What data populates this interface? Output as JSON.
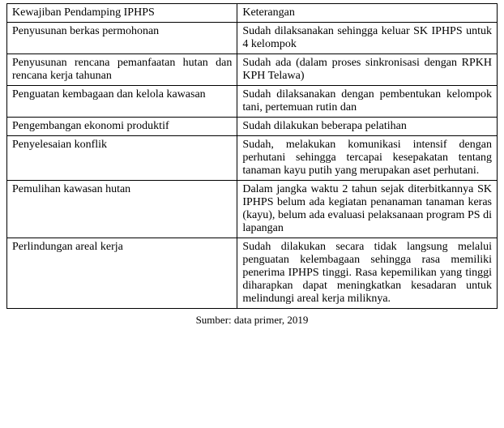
{
  "table": {
    "columns": [
      "Kewajiban Pendamping IPHPS",
      "Keterangan"
    ],
    "rows": [
      [
        "Penyusunan berkas permohonan",
        "Sudah dilaksanakan sehingga keluar SK IPHPS untuk 4 kelompok"
      ],
      [
        "Penyusunan rencana pemanfaatan hutan dan rencana kerja tahunan",
        "Sudah ada (dalam proses sinkronisasi dengan RPKH KPH Telawa)"
      ],
      [
        "Penguatan kembagaan dan kelola kawasan",
        "Sudah dilaksanakan dengan pembentukan kelompok tani, pertemuan rutin dan"
      ],
      [
        "Pengembangan ekonomi produktif",
        "Sudah dilakukan beberapa pelatihan"
      ],
      [
        "Penyelesaian konflik",
        "Sudah, melakukan komunikasi intensif dengan perhutani sehingga tercapai kesepakatan tentang tanaman kayu putih yang merupakan aset perhutani."
      ],
      [
        "Pemulihan kawasan hutan",
        "Dalam jangka waktu 2 tahun sejak diterbitkannya SK IPHPS belum ada kegiatan penanaman tanaman keras (kayu), belum ada evaluasi pelaksanaan program PS di lapangan"
      ],
      [
        "Perlindungan areal kerja",
        "Sudah dilakukan secara tidak langsung melalui penguatan kelembagaan sehingga rasa memiliki penerima IPHPS tinggi. Rasa kepemilikan yang tinggi diharapkan dapat meningkatkan kesadaran untuk melindungi areal kerja miliknya."
      ]
    ],
    "col1_width": "47%",
    "col2_width": "53%",
    "border_color": "#000000",
    "font_family": "Georgia, 'Times New Roman', serif",
    "font_size": 14,
    "text_align": "justify"
  },
  "caption": "Sumber: data primer, 2019"
}
